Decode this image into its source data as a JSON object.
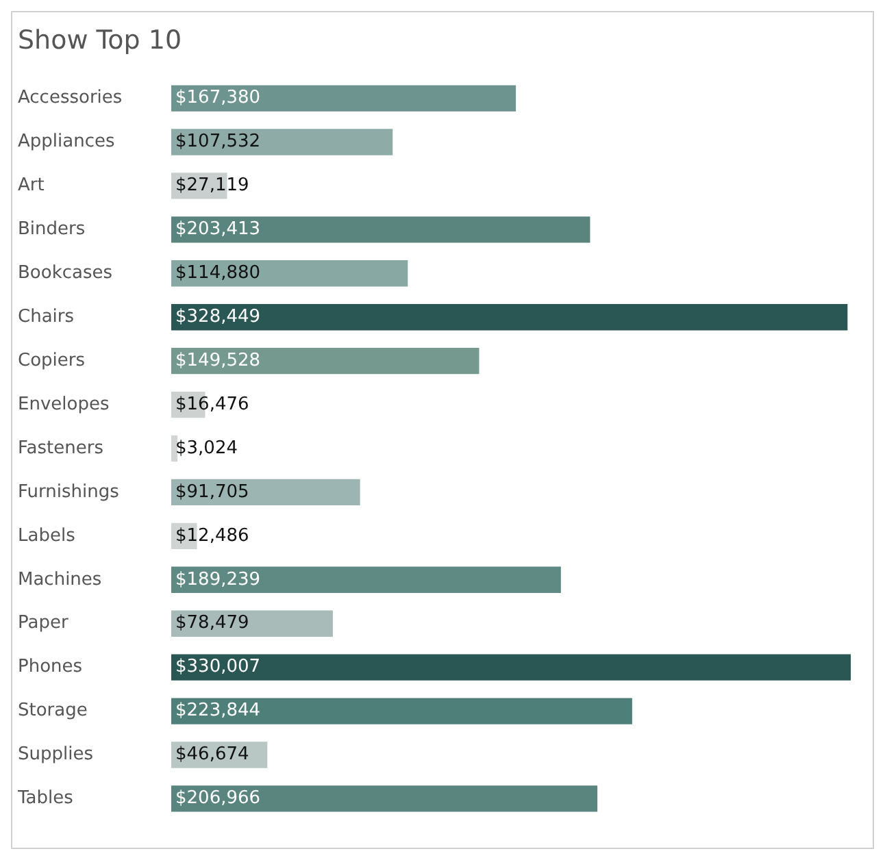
{
  "chart_data": {
    "type": "bar",
    "orientation": "horizontal",
    "title": "Show Top 10",
    "categories": [
      "Accessories",
      "Appliances",
      "Art",
      "Binders",
      "Bookcases",
      "Chairs",
      "Copiers",
      "Envelopes",
      "Fasteners",
      "Furnishings",
      "Labels",
      "Machines",
      "Paper",
      "Phones",
      "Storage",
      "Supplies",
      "Tables"
    ],
    "values": [
      167380,
      107532,
      27119,
      203413,
      114880,
      328449,
      149528,
      16476,
      3024,
      91705,
      12486,
      189239,
      78479,
      330007,
      223844,
      46674,
      206966
    ],
    "value_labels": [
      "$167,380",
      "$107,532",
      "$27,119",
      "$203,413",
      "$114,880",
      "$328,449",
      "$149,528",
      "$16,476",
      "$3,024",
      "$91,705",
      "$12,486",
      "$189,239",
      "$78,479",
      "$330,007",
      "$223,844",
      "$46,674",
      "$206,966"
    ],
    "colors": [
      "#6e948f",
      "#8eaba7",
      "#c8cfce",
      "#5a857f",
      "#88a8a3",
      "#2a5753",
      "#75998f",
      "#cdd2d1",
      "#d2d5d4",
      "#9db5b2",
      "#d0d4d3",
      "#5f8a83",
      "#a9bbb9",
      "#2a5753",
      "#4f7f79",
      "#b8c6c4",
      "#5a857f"
    ],
    "legend": false
  }
}
